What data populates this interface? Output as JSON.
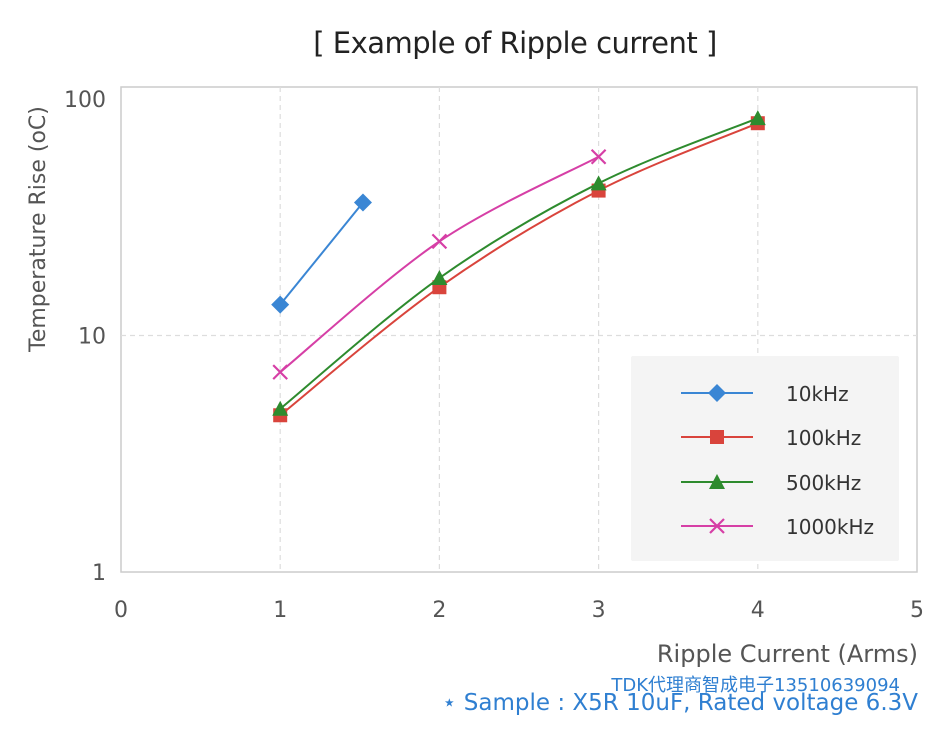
{
  "watermark": "TDK代理商智成电子13510639094",
  "note": "⋆ Sample : X5R 10uF, Rated voltage 6.3V",
  "chart_data": {
    "type": "line",
    "title": "[ Example of Ripple current ]",
    "xlabel": "Ripple Current (Arms)",
    "ylabel": "Temperature Rise (oC)",
    "xlim": [
      0,
      5
    ],
    "ylim": [
      1,
      100
    ],
    "yscale": "log",
    "xticks": [
      "0",
      "1",
      "2",
      "3",
      "4",
      "5"
    ],
    "yticks": [
      "1",
      "10",
      "100"
    ],
    "grid": true,
    "legend_position": "lower-right",
    "series": [
      {
        "name": "10kHz",
        "color": "#3a86d4",
        "marker": "diamond",
        "x": [
          1,
          1.52
        ],
        "y": [
          13.5,
          36.5
        ]
      },
      {
        "name": "100kHz",
        "color": "#d9443c",
        "marker": "square",
        "x": [
          1,
          2,
          3,
          4
        ],
        "y": [
          4.6,
          16,
          41,
          79
        ]
      },
      {
        "name": "500kHz",
        "color": "#2e8b2e",
        "marker": "triangle",
        "x": [
          1,
          2,
          3,
          4
        ],
        "y": [
          4.9,
          17.5,
          44,
          83
        ]
      },
      {
        "name": "1000kHz",
        "color": "#d63fa6",
        "marker": "x",
        "x": [
          1,
          2,
          3
        ],
        "y": [
          7,
          25,
          57
        ]
      }
    ]
  }
}
